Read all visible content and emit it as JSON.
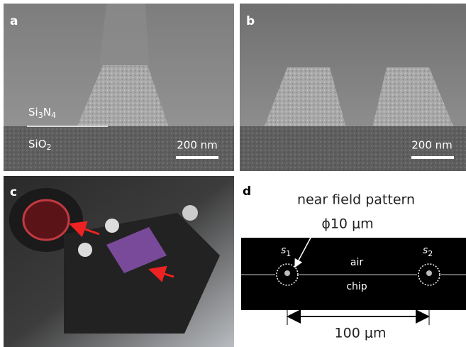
{
  "panels": {
    "a": {
      "label": "a",
      "layer_top": [
        "Si",
        "3",
        "N",
        "4"
      ],
      "layer_bottom": [
        "SiO",
        "2"
      ],
      "scale_bar": "200 nm"
    },
    "b": {
      "label": "b",
      "scale_bar": "200 nm"
    },
    "c": {
      "label": "c"
    },
    "d": {
      "label": "d",
      "title": "near field pattern",
      "spot_size": "ϕ10 μm",
      "spot_left": [
        "s",
        "1"
      ],
      "spot_right": [
        "s",
        "2"
      ],
      "upper_medium": "air",
      "lower_medium": "chip",
      "separation": "100 μm"
    }
  }
}
